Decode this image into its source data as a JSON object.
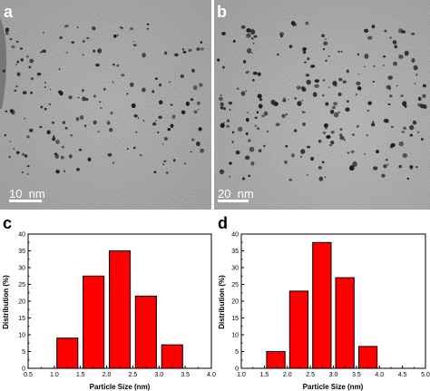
{
  "panels": {
    "a": {
      "letter": "a",
      "scale_bar": "10  nm"
    },
    "b": {
      "letter": "b",
      "scale_bar": "20  nm"
    },
    "c": {
      "letter": "c"
    },
    "d": {
      "letter": "d"
    }
  },
  "colors": {
    "bar": "#ff0000",
    "bar_edge": "#000000",
    "tem_background": "#9a9a9a",
    "particle": "#1a1a1a"
  },
  "chart_data": [
    {
      "panel": "c",
      "type": "bar",
      "x": [
        1.25,
        1.75,
        2.25,
        2.75,
        3.25
      ],
      "values": [
        9,
        27.5,
        35,
        21.5,
        7
      ],
      "bin_width": 0.4,
      "xlabel": "Particle Size (nm)",
      "ylabel": "Distribution (%)",
      "xlim": [
        0.5,
        4.0
      ],
      "ylim": [
        0,
        40
      ],
      "xticks": [
        "0.5",
        "1.0",
        "1.5",
        "2.0",
        "2.5",
        "3.0",
        "3.5",
        "4.0"
      ],
      "yticks": [
        "0",
        "5",
        "10",
        "15",
        "20",
        "25",
        "30",
        "35",
        "40"
      ],
      "grid": false
    },
    {
      "panel": "d",
      "type": "bar",
      "x": [
        1.75,
        2.25,
        2.75,
        3.25,
        3.75
      ],
      "values": [
        5,
        23,
        37.5,
        27,
        6.5
      ],
      "bin_width": 0.4,
      "xlabel": "Particle Size (nm)",
      "ylabel": "Distribution (%)",
      "xlim": [
        1.0,
        5.0
      ],
      "ylim": [
        0,
        40
      ],
      "xticks": [
        "1.0",
        "1.5",
        "2.0",
        "2.5",
        "3.0",
        "3.5",
        "4.0",
        "4.5",
        "5.0"
      ],
      "yticks": [
        "0",
        "5",
        "10",
        "15",
        "20",
        "25",
        "30",
        "35",
        "40"
      ],
      "grid": false
    }
  ]
}
